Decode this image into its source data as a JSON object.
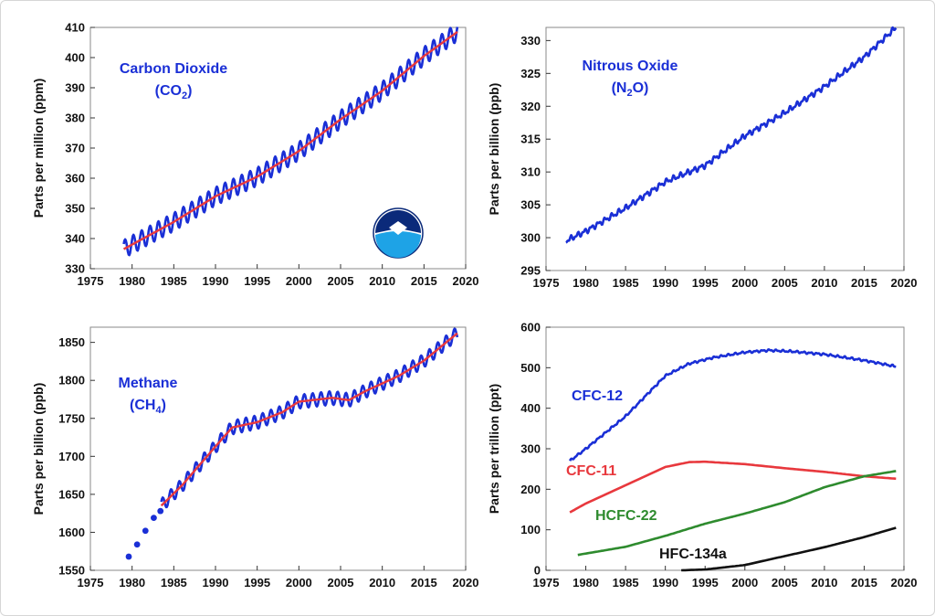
{
  "chart_data": [
    {
      "type": "line",
      "ylabel": "Parts per million (ppm)",
      "xlim": [
        1975,
        2020
      ],
      "ylim": [
        330,
        410
      ],
      "xticks": [
        1975,
        1980,
        1985,
        1990,
        1995,
        2000,
        2005,
        2010,
        2015,
        2020
      ],
      "yticks": [
        330,
        340,
        350,
        360,
        370,
        380,
        390,
        400,
        410
      ],
      "annotations": [
        {
          "text": "Carbon Dioxide",
          "color": "#1a2fd6"
        },
        {
          "text": "(CO",
          "sub": "2",
          "after": ")",
          "color": "#1a2fd6"
        }
      ],
      "logo": "noaa-logo",
      "series": [
        {
          "color": "#1a2fd6",
          "style": "seasonal-monthly",
          "x": [
            1979,
            1985,
            1990,
            1995,
            2000,
            2005,
            2010,
            2015,
            2019
          ],
          "y": [
            336.5,
            345.5,
            354,
            360.5,
            369,
            379.5,
            389,
            400.5,
            408.5
          ],
          "amplitude": 3
        },
        {
          "color": "#e8383d",
          "style": "trend",
          "x": [
            1979,
            1985,
            1990,
            1995,
            2000,
            2005,
            2010,
            2015,
            2019
          ],
          "y": [
            336.5,
            345.5,
            354,
            360.5,
            369,
            379.5,
            389,
            400.5,
            408.5
          ]
        }
      ]
    },
    {
      "type": "line",
      "ylabel": "Parts per billion (ppb)",
      "xlim": [
        1975,
        2020
      ],
      "ylim": [
        295,
        332
      ],
      "xticks": [
        1975,
        1980,
        1985,
        1990,
        1995,
        2000,
        2005,
        2010,
        2015,
        2020
      ],
      "yticks": [
        295,
        300,
        305,
        310,
        315,
        320,
        325,
        330
      ],
      "annotations": [
        {
          "text": "Nitrous Oxide",
          "color": "#1a2fd6"
        },
        {
          "text": "(N",
          "sub": "2",
          "after": "O)",
          "color": "#1a2fd6"
        }
      ],
      "series": [
        {
          "color": "#1a2fd6",
          "style": "noisy",
          "x": [
            1977.5,
            1980,
            1985,
            1990,
            1995,
            2000,
            2005,
            2010,
            2015,
            2019
          ],
          "y": [
            299.5,
            301,
            304.5,
            308.5,
            311,
            315.5,
            319,
            323,
            327.5,
            332
          ],
          "amplitude": 0.5
        }
      ]
    },
    {
      "type": "line",
      "ylabel": "Parts per billion (ppb)",
      "xlim": [
        1975,
        2020
      ],
      "ylim": [
        1550,
        1870
      ],
      "xticks": [
        1975,
        1980,
        1985,
        1990,
        1995,
        2000,
        2005,
        2010,
        2015,
        2020
      ],
      "yticks": [
        1550,
        1600,
        1650,
        1700,
        1750,
        1800,
        1850
      ],
      "annotations": [
        {
          "text": "Methane",
          "color": "#1a2fd6"
        },
        {
          "text": "(CH",
          "sub": "4",
          "after": ")",
          "color": "#1a2fd6"
        }
      ],
      "points": {
        "color": "#1a2fd6",
        "x": [
          1979.6,
          1980.6,
          1981.6,
          1982.6,
          1983.4
        ],
        "y": [
          1568,
          1584,
          1602,
          1619,
          1628
        ]
      },
      "series": [
        {
          "color": "#1a2fd6",
          "style": "seasonal-monthly",
          "x": [
            1983.5,
            1986,
            1990,
            1992,
            1995,
            1998,
            2000,
            2004,
            2006,
            2008,
            2012,
            2015,
            2019
          ],
          "y": [
            1635,
            1662,
            1713,
            1738,
            1745,
            1758,
            1772,
            1777,
            1774,
            1786,
            1806,
            1826,
            1862
          ],
          "amplitude": 9
        },
        {
          "color": "#e8383d",
          "style": "trend",
          "x": [
            1983.5,
            1986,
            1990,
            1992,
            1995,
            1998,
            2000,
            2004,
            2006,
            2008,
            2012,
            2015,
            2019
          ],
          "y": [
            1635,
            1662,
            1713,
            1738,
            1745,
            1758,
            1772,
            1777,
            1774,
            1786,
            1806,
            1826,
            1862
          ]
        }
      ]
    },
    {
      "type": "line",
      "ylabel": "Parts per trillion (ppt)",
      "xlim": [
        1975,
        2020
      ],
      "ylim": [
        0,
        600
      ],
      "xticks": [
        1975,
        1980,
        1985,
        1990,
        1995,
        2000,
        2005,
        2010,
        2015,
        2020
      ],
      "yticks": [
        0,
        100,
        200,
        300,
        400,
        500,
        600
      ],
      "annotations": [
        {
          "text": "CFC-12",
          "color": "#1a2fd6"
        },
        {
          "text": "CFC-11",
          "color": "#e8383d"
        },
        {
          "text": "HCFC-22",
          "color": "#2e8b2e"
        },
        {
          "text": "HFC-134a",
          "color": "#111111"
        }
      ],
      "series": [
        {
          "name": "CFC-12",
          "color": "#1a2fd6",
          "style": "noisy",
          "amplitude": 3,
          "x": [
            1978,
            1980,
            1985,
            1990,
            1993,
            1996,
            2000,
            2003,
            2006,
            2010,
            2015,
            2019
          ],
          "y": [
            270,
            300,
            380,
            480,
            510,
            525,
            538,
            543,
            540,
            533,
            518,
            503
          ]
        },
        {
          "name": "CFC-11",
          "color": "#e8383d",
          "style": "smooth",
          "x": [
            1978,
            1980,
            1985,
            1990,
            1993,
            1995,
            2000,
            2005,
            2010,
            2015,
            2019
          ],
          "y": [
            143,
            165,
            210,
            255,
            267,
            268,
            262,
            252,
            243,
            232,
            226
          ]
        },
        {
          "name": "HCFC-22",
          "color": "#2e8b2e",
          "style": "smooth",
          "x": [
            1979,
            1985,
            1990,
            1995,
            2000,
            2005,
            2010,
            2015,
            2019
          ],
          "y": [
            38,
            58,
            85,
            115,
            140,
            168,
            205,
            232,
            245
          ]
        },
        {
          "name": "HFC-134a",
          "color": "#111111",
          "style": "smooth",
          "x": [
            1992,
            1995,
            2000,
            2005,
            2010,
            2015,
            2019
          ],
          "y": [
            0,
            2,
            13,
            35,
            57,
            82,
            105
          ]
        }
      ]
    }
  ]
}
